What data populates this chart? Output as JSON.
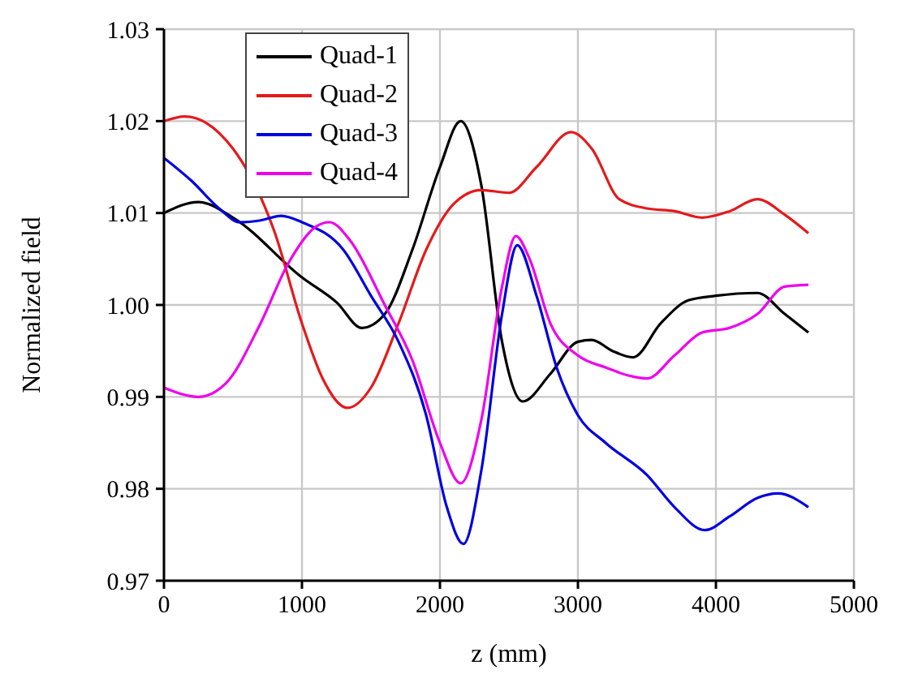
{
  "chart_data": {
    "type": "line",
    "xlabel": "z (mm)",
    "ylabel": "Normalized field",
    "xlim": [
      0,
      5000
    ],
    "xticks": [
      0,
      1000,
      2000,
      3000,
      4000,
      5000
    ],
    "ylim": [
      0.97,
      1.03
    ],
    "yticks": [
      0.97,
      0.98,
      0.99,
      {
        "value": 1,
        "label": "1.00"
      },
      1.01,
      1.02,
      1.03
    ],
    "grid": true,
    "legend": "top left",
    "marker": "none",
    "line_style": "solid",
    "series": [
      {
        "name": "Quad-1",
        "color": "#000000",
        "x": [
          0,
          250,
          500,
          1000,
          1250,
          1435,
          1600,
          1800,
          2000,
          2150,
          2300,
          2450,
          2600,
          2800,
          3000,
          3100,
          3250,
          3400,
          3600,
          3800,
          4000,
          4300,
          4500,
          4670
        ],
        "values": [
          1.01,
          1.0112,
          1.0095,
          1.003,
          1.0003,
          0.9975,
          0.999,
          1.006,
          1.015,
          1.02,
          1.013,
          0.996,
          0.9895,
          0.9925,
          0.996,
          0.9962,
          0.995,
          0.9943,
          0.998,
          1.0005,
          1.001,
          1.0013,
          0.999,
          0.997
        ]
      },
      {
        "name": "Quad-2",
        "color": "#e41a1c",
        "x": [
          0,
          150,
          500,
          800,
          1000,
          1150,
          1330,
          1500,
          1700,
          1900,
          2100,
          2300,
          2500,
          2700,
          2950,
          3100,
          3300,
          3500,
          3700,
          3900,
          4100,
          4300,
          4500,
          4670
        ],
        "values": [
          1.02,
          1.0205,
          1.017,
          1.008,
          0.998,
          0.992,
          0.9888,
          0.991,
          0.998,
          1.006,
          1.011,
          1.0125,
          1.0122,
          1.015,
          1.0188,
          1.017,
          1.0115,
          1.0105,
          1.0102,
          1.0095,
          1.0102,
          1.0115,
          1.0098,
          1.0078
        ]
      },
      {
        "name": "Quad-3",
        "color": "#0000e0",
        "x": [
          0,
          200,
          400,
          550,
          700,
          850,
          1000,
          1300,
          1500,
          1700,
          1900,
          2050,
          2170,
          2300,
          2450,
          2560,
          2700,
          2850,
          3000,
          3200,
          3500,
          3700,
          3920,
          4100,
          4300,
          4450,
          4670
        ],
        "values": [
          1.016,
          1.0135,
          1.0105,
          1.009,
          1.0092,
          1.0097,
          1.009,
          1.006,
          1.001,
          0.996,
          0.988,
          0.978,
          0.974,
          0.982,
          0.999,
          1.0065,
          1.001,
          0.993,
          0.988,
          0.985,
          0.9815,
          0.978,
          0.9755,
          0.977,
          0.979,
          0.9795,
          0.978
        ]
      },
      {
        "name": "Quad-4",
        "color": "#ee00ee",
        "x": [
          0,
          250,
          450,
          700,
          900,
          1100,
          1200,
          1350,
          1600,
          1800,
          2000,
          2150,
          2300,
          2450,
          2550,
          2650,
          2800,
          3000,
          3200,
          3400,
          3500,
          3700,
          3900,
          4100,
          4300,
          4500,
          4670
        ],
        "values": [
          0.991,
          0.99,
          0.9915,
          0.998,
          1.0045,
          1.0085,
          1.009,
          1.007,
          1.0,
          0.994,
          0.985,
          0.9806,
          0.9875,
          1.002,
          1.0075,
          1.005,
          0.998,
          0.9945,
          0.9932,
          0.9922,
          0.992,
          0.9945,
          0.997,
          0.9975,
          0.999,
          1.002,
          1.0022
        ]
      }
    ]
  }
}
